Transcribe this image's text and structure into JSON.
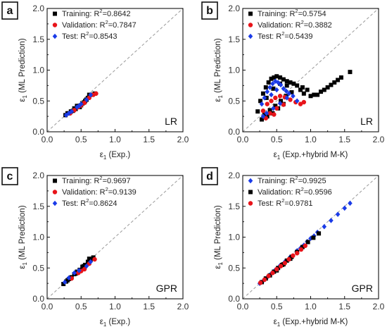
{
  "chart_data": [
    {
      "panel": "a",
      "type": "scatter",
      "method": "LR",
      "xlabel": "ε1 (Exp.)",
      "ylabel": "ε1 (ML Prediction)",
      "xlim": [
        0,
        2.0
      ],
      "ylim": [
        0,
        2.0
      ],
      "xticks": [
        "0.0",
        "0.5",
        "1.0",
        "1.5",
        "2.0"
      ],
      "yticks": [
        "0.0",
        "0.5",
        "1.0",
        "1.5",
        "2.0"
      ],
      "reference_line": "y = x (dashed)",
      "legend_position": "top-left",
      "series": [
        {
          "name": "Training",
          "r2": "0.8642",
          "color": "#000000",
          "marker": "square",
          "x": [
            0.27,
            0.32,
            0.38,
            0.42,
            0.45,
            0.5,
            0.55,
            0.6,
            0.62,
            0.35,
            0.48,
            0.52,
            0.58,
            0.66,
            0.7,
            0.4,
            0.3,
            0.44,
            0.56
          ],
          "y": [
            0.27,
            0.3,
            0.34,
            0.37,
            0.4,
            0.43,
            0.48,
            0.55,
            0.6,
            0.33,
            0.4,
            0.46,
            0.52,
            0.6,
            0.62,
            0.38,
            0.3,
            0.42,
            0.5
          ]
        },
        {
          "name": "Validation",
          "r2": "0.7847",
          "color": "#e8141a",
          "marker": "circle",
          "x": [
            0.34,
            0.46,
            0.55,
            0.62,
            0.72,
            0.5,
            0.4,
            0.68
          ],
          "y": [
            0.3,
            0.4,
            0.47,
            0.55,
            0.62,
            0.43,
            0.35,
            0.6
          ]
        },
        {
          "name": "Test",
          "r2": "0.8543",
          "color": "#1a3be8",
          "marker": "diamond",
          "x": [
            0.28,
            0.36,
            0.44,
            0.5,
            0.58,
            0.64,
            0.32,
            0.47
          ],
          "y": [
            0.27,
            0.33,
            0.4,
            0.45,
            0.52,
            0.6,
            0.3,
            0.42
          ]
        }
      ]
    },
    {
      "panel": "b",
      "type": "scatter",
      "method": "LR",
      "xlabel": "ε1 (Exp.+hybrid M-K)",
      "ylabel": "ε1 (ML Prediction)",
      "xlim": [
        0,
        2.0
      ],
      "ylim": [
        0,
        2.0
      ],
      "xticks": [
        "0.0",
        "0.5",
        "1.0",
        "1.5",
        "2.0"
      ],
      "yticks": [
        "0.0",
        "0.5",
        "1.0",
        "1.5",
        "2.0"
      ],
      "reference_line": "y = x (dashed)",
      "legend_position": "top-left",
      "series": [
        {
          "name": "Training",
          "r2": "0.5754",
          "color": "#000000",
          "marker": "square",
          "x": [
            0.22,
            0.26,
            0.3,
            0.34,
            0.38,
            0.42,
            0.46,
            0.5,
            0.55,
            0.6,
            0.65,
            0.7,
            0.75,
            0.8,
            0.88,
            0.95,
            1.05,
            1.15,
            1.25,
            1.35,
            1.45,
            1.58,
            0.32,
            0.4,
            0.48,
            0.56,
            0.64,
            0.72,
            0.85,
            0.28,
            0.36,
            0.44,
            0.52,
            0.6,
            0.9,
            1.0,
            1.1,
            1.2,
            1.3,
            1.4,
            0.35,
            0.45,
            0.55,
            0.65
          ],
          "y": [
            0.33,
            0.5,
            0.62,
            0.72,
            0.8,
            0.86,
            0.88,
            0.9,
            0.88,
            0.85,
            0.82,
            0.8,
            0.78,
            0.75,
            0.72,
            0.68,
            0.6,
            0.65,
            0.72,
            0.8,
            0.88,
            0.97,
            0.28,
            0.35,
            0.42,
            0.5,
            0.58,
            0.64,
            0.68,
            0.2,
            0.25,
            0.3,
            0.38,
            0.45,
            0.62,
            0.58,
            0.6,
            0.68,
            0.76,
            0.84,
            0.55,
            0.7,
            0.78,
            0.75
          ]
        },
        {
          "name": "Validation",
          "r2": "0.3882",
          "color": "#e8141a",
          "marker": "circle",
          "x": [
            0.3,
            0.36,
            0.42,
            0.48,
            0.55,
            0.62,
            0.7,
            0.78,
            0.85,
            0.9,
            0.4,
            0.5,
            0.6,
            0.34,
            0.46
          ],
          "y": [
            0.34,
            0.45,
            0.5,
            0.55,
            0.58,
            0.56,
            0.52,
            0.48,
            0.45,
            0.48,
            0.3,
            0.38,
            0.44,
            0.22,
            0.28
          ]
        },
        {
          "name": "Test",
          "r2": "0.5439",
          "color": "#1a3be8",
          "marker": "diamond",
          "x": [
            0.28,
            0.32,
            0.36,
            0.4,
            0.44,
            0.48,
            0.52,
            0.56,
            0.6,
            0.64,
            0.68,
            0.74,
            0.8,
            0.35,
            0.45,
            0.55,
            0.65,
            0.3,
            0.42,
            0.5
          ],
          "y": [
            0.45,
            0.55,
            0.65,
            0.72,
            0.78,
            0.82,
            0.8,
            0.76,
            0.7,
            0.66,
            0.62,
            0.58,
            0.5,
            0.3,
            0.38,
            0.46,
            0.55,
            0.25,
            0.6,
            0.68
          ]
        }
      ]
    },
    {
      "panel": "c",
      "type": "scatter",
      "method": "GPR",
      "xlabel": "ε1 (Exp.)",
      "ylabel": "ε1 (ML Prediction)",
      "xlim": [
        0,
        2.0
      ],
      "ylim": [
        0,
        2.0
      ],
      "xticks": [
        "0.0",
        "0.5",
        "1.0",
        "1.5",
        "2.0"
      ],
      "yticks": [
        "0.0",
        "0.5",
        "1.0",
        "1.5",
        "2.0"
      ],
      "reference_line": "y = x (dashed)",
      "legend_position": "top-left",
      "series": [
        {
          "name": "Training",
          "r2": "0.9697",
          "color": "#000000",
          "marker": "square",
          "x": [
            0.24,
            0.28,
            0.32,
            0.36,
            0.4,
            0.44,
            0.48,
            0.52,
            0.56,
            0.6,
            0.64,
            0.68,
            0.3,
            0.42,
            0.54,
            0.62
          ],
          "y": [
            0.24,
            0.28,
            0.32,
            0.35,
            0.4,
            0.44,
            0.47,
            0.52,
            0.55,
            0.6,
            0.63,
            0.67,
            0.3,
            0.41,
            0.53,
            0.65
          ]
        },
        {
          "name": "Validation",
          "r2": "0.9139",
          "color": "#e8141a",
          "marker": "circle",
          "x": [
            0.36,
            0.46,
            0.55,
            0.62,
            0.7,
            0.5
          ],
          "y": [
            0.33,
            0.42,
            0.48,
            0.57,
            0.64,
            0.45
          ]
        },
        {
          "name": "Test",
          "r2": "0.8624",
          "color": "#1a3be8",
          "marker": "diamond",
          "x": [
            0.26,
            0.32,
            0.4,
            0.47,
            0.58,
            0.64
          ],
          "y": [
            0.27,
            0.34,
            0.42,
            0.46,
            0.53,
            0.6
          ]
        }
      ]
    },
    {
      "panel": "d",
      "type": "scatter",
      "method": "GPR",
      "xlabel": "ε1 (Exp.+hybrid M-K)",
      "ylabel": "ε1 (ML Prediction)",
      "xlim": [
        0,
        2.0
      ],
      "ylim": [
        0,
        2.0
      ],
      "xticks": [
        "0.0",
        "0.5",
        "1.0",
        "1.5",
        "2.0"
      ],
      "yticks": [
        "0.0",
        "0.5",
        "1.0",
        "1.5",
        "2.0"
      ],
      "reference_line": "y = x (dashed)",
      "legend_position": "top-left",
      "series": [
        {
          "name": "Training",
          "r2": "0.9925",
          "color": "#1a3be8",
          "marker": "diamond",
          "x": [
            0.25,
            0.3,
            0.36,
            0.42,
            0.48,
            0.55,
            0.62,
            0.7,
            0.8,
            0.9,
            1.0,
            1.1,
            1.2,
            1.3,
            1.4,
            1.5,
            1.58,
            0.85,
            0.95,
            1.05
          ],
          "y": [
            0.25,
            0.29,
            0.35,
            0.41,
            0.47,
            0.54,
            0.6,
            0.68,
            0.78,
            0.87,
            0.98,
            1.08,
            1.17,
            1.27,
            1.37,
            1.47,
            1.55,
            0.82,
            0.93,
            1.02
          ]
        },
        {
          "name": "Validation",
          "r2": "0.9596",
          "color": "#000000",
          "marker": "square",
          "x": [
            0.28,
            0.34,
            0.4,
            0.46,
            0.52,
            0.58,
            0.65,
            0.72,
            0.8,
            0.88,
            0.96,
            1.04,
            1.12,
            0.5,
            0.6,
            0.7
          ],
          "y": [
            0.27,
            0.33,
            0.38,
            0.44,
            0.5,
            0.55,
            0.62,
            0.68,
            0.76,
            0.84,
            0.92,
            0.99,
            1.06,
            0.46,
            0.56,
            0.65
          ]
        },
        {
          "name": "Test",
          "r2": "0.9781",
          "color": "#e8141a",
          "marker": "circle",
          "x": [
            0.26,
            0.32,
            0.38,
            0.44,
            0.5,
            0.56,
            0.62,
            0.68,
            0.74,
            0.8,
            0.86,
            0.92
          ],
          "y": [
            0.26,
            0.31,
            0.37,
            0.42,
            0.48,
            0.53,
            0.58,
            0.64,
            0.7,
            0.74,
            0.8,
            0.86
          ]
        }
      ]
    }
  ]
}
